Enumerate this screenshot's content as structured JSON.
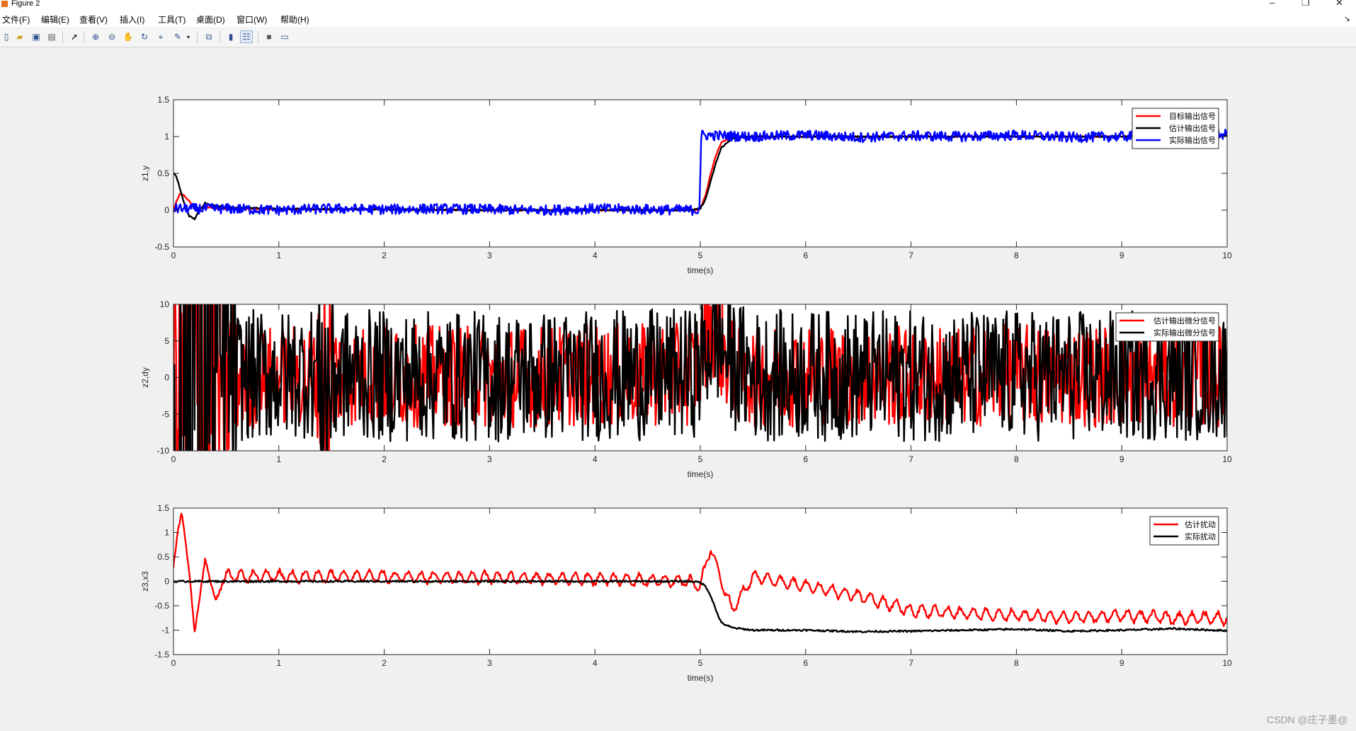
{
  "window": {
    "title": "Figure 2"
  },
  "menu": [
    "文件(F)",
    "编辑(E)",
    "查看(V)",
    "插入(I)",
    "工具(T)",
    "桌面(D)",
    "窗口(W)",
    "帮助(H)"
  ],
  "toolbar": {
    "icons": [
      "new-figure-icon",
      "open-file-icon",
      "save-icon",
      "print-icon",
      "select-arrow-icon",
      "zoom-in-icon",
      "zoom-out-icon",
      "pan-hand-icon",
      "rotate-3d-icon",
      "data-cursor-icon",
      "brush-icon",
      "brush-dropdown-icon",
      "link-plot-icon",
      "colorbar-icon",
      "legend-icon",
      "hide-plot-tools-icon",
      "show-plot-tools-icon"
    ]
  },
  "watermark": "CSDN @庄子墨@",
  "colors": {
    "red": "#ff0000",
    "black": "#000000",
    "blue": "#0000ff"
  },
  "chart_data": [
    {
      "type": "line",
      "ylabel": "z1,y",
      "xlabel": "time(s)",
      "xlim": [
        0,
        10
      ],
      "ylim": [
        -0.5,
        1.5
      ],
      "xticks": [
        "0",
        "1",
        "2",
        "3",
        "4",
        "5",
        "6",
        "7",
        "8",
        "9",
        "10"
      ],
      "yticks": [
        "-0.5",
        "0",
        "0.5",
        "1",
        "1.5"
      ],
      "yvals": [
        -0.5,
        0,
        0.5,
        1,
        1.5
      ],
      "legend_position": "top-right",
      "series": [
        {
          "name": "目标输出信号",
          "color": "#ff0000",
          "x": [
            0,
            0.03,
            0.06,
            0.1,
            0.15,
            0.2,
            0.3,
            0.5,
            1,
            2,
            3,
            4,
            4.9,
            4.95,
            5.0,
            5.05,
            5.1,
            5.15,
            5.2,
            5.3,
            6,
            7,
            8,
            9,
            10
          ],
          "y": [
            0,
            0.12,
            0.22,
            0.2,
            0.12,
            0.02,
            0.04,
            0.02,
            0.01,
            0.01,
            0,
            0,
            0,
            0,
            0.02,
            0.2,
            0.5,
            0.75,
            0.92,
            0.99,
            1,
            1,
            1,
            1,
            1.01
          ]
        },
        {
          "name": "估计输出信号",
          "color": "#000000",
          "x": [
            0,
            0.02,
            0.05,
            0.1,
            0.15,
            0.2,
            0.25,
            0.3,
            0.35,
            0.5,
            1,
            2,
            3,
            4,
            4.9,
            5.0,
            5.05,
            5.1,
            5.15,
            5.2,
            5.3,
            5.5,
            6,
            7,
            8,
            9,
            10
          ],
          "y": [
            0.5,
            0.48,
            0.35,
            0.1,
            -0.08,
            -0.12,
            0.0,
            0.1,
            0.07,
            0.04,
            0.02,
            0.01,
            0,
            0,
            0,
            0.02,
            0.15,
            0.4,
            0.65,
            0.85,
            0.97,
            1,
            1,
            1,
            1,
            1,
            1.01
          ]
        },
        {
          "name": "实际输出信号",
          "color": "#0000ff",
          "x": [
            0,
            0.5,
            1,
            1.5,
            2,
            2.5,
            3,
            3.5,
            4,
            4.5,
            4.99,
            5.01,
            5.5,
            6,
            6.5,
            7,
            7.5,
            8,
            8.5,
            9,
            9.5,
            10
          ],
          "y": [
            0.02,
            0.02,
            0.0,
            0.02,
            0.01,
            0.02,
            0.01,
            0.0,
            0.02,
            0.01,
            0.0,
            1.02,
            1.0,
            1.02,
            0.99,
            1.01,
            1.0,
            1.02,
            0.99,
            1.0,
            1.02,
            1.03
          ]
        }
      ]
    },
    {
      "type": "line",
      "ylabel": "z2,dy",
      "xlabel": "time(s)",
      "xlim": [
        0,
        10
      ],
      "ylim": [
        -10,
        10
      ],
      "xticks": [
        "0",
        "1",
        "2",
        "3",
        "4",
        "5",
        "6",
        "7",
        "8",
        "9",
        "10"
      ],
      "yticks": [
        "-10",
        "-5",
        "0",
        "5",
        "10"
      ],
      "yvals": [
        -10,
        -5,
        0,
        5,
        10
      ],
      "legend_position": "top-right",
      "series": [
        {
          "name": "估计输出微分信号",
          "color": "#ff0000",
          "x": [
            0,
            0.05,
            0.1,
            0.15,
            0.2,
            0.25,
            0.3,
            0.4,
            0.5,
            1,
            1.5,
            2,
            3,
            4,
            4.9,
            5.0,
            5.05,
            5.1,
            5.15,
            5.2,
            5.3,
            5.5,
            6,
            7,
            8,
            9,
            10
          ],
          "y": [
            0,
            1.5,
            -2.5,
            3,
            -3,
            2,
            -1.5,
            1,
            -0.5,
            0.2,
            0.4,
            0.2,
            0.1,
            0.3,
            0.4,
            2,
            5,
            7,
            6.5,
            4,
            1,
            0.2,
            0.3,
            0.2,
            0.3,
            0.2,
            0.3
          ]
        },
        {
          "name": "实际输出微分信号",
          "color": "#000000",
          "x": [
            0,
            0.03,
            0.06,
            0.08,
            0.1,
            0.13,
            0.16,
            0.2,
            0.25,
            0.3,
            0.35,
            0.4,
            0.5,
            0.6,
            1,
            1.4,
            1.45,
            1.5,
            2,
            3,
            4,
            4.9,
            5.0,
            5.05,
            5.1,
            5.15,
            5.2,
            5.3,
            5.5,
            6,
            7,
            8,
            9,
            10
          ],
          "y": [
            0,
            -3,
            -6,
            -8,
            -6,
            -2,
            3,
            6,
            3,
            -1,
            2,
            -2,
            1,
            0.3,
            0.2,
            1,
            -3,
            0.5,
            0.2,
            0.1,
            0.3,
            0.4,
            1.5,
            3.5,
            5,
            5.5,
            4.5,
            2,
            0.3,
            0.3,
            0.2,
            0.3,
            0.2,
            0.4
          ]
        }
      ]
    },
    {
      "type": "line",
      "ylabel": "z3,x3",
      "xlabel": "time(s)",
      "xlim": [
        0,
        10
      ],
      "ylim": [
        -1.5,
        1.5
      ],
      "xticks": [
        "0",
        "1",
        "2",
        "3",
        "4",
        "5",
        "6",
        "7",
        "8",
        "9",
        "10"
      ],
      "yticks": [
        "-1.5",
        "-1",
        "-0.5",
        "0",
        "0.5",
        "1",
        "1.5"
      ],
      "yvals": [
        -1.5,
        -1,
        -0.5,
        0,
        0.5,
        1,
        1.5
      ],
      "legend_position": "top-right",
      "series": [
        {
          "name": "估计扰动",
          "color": "#ff0000",
          "x": [
            0,
            0.04,
            0.08,
            0.15,
            0.2,
            0.3,
            0.4,
            0.5,
            1,
            2,
            3,
            4,
            4.9,
            5.0,
            5.1,
            5.2,
            5.3,
            5.5,
            6,
            6.5,
            7,
            7.5,
            8,
            8.5,
            9,
            9.5,
            10
          ],
          "y": [
            0.3,
            1.0,
            1.42,
            0.2,
            -1.05,
            0.45,
            -0.4,
            0.1,
            0.1,
            0.1,
            0.08,
            0.05,
            0.0,
            -0.1,
            0.7,
            0.0,
            -0.6,
            0.1,
            -0.1,
            -0.3,
            -0.6,
            -0.65,
            -0.7,
            -0.75,
            -0.7,
            -0.75,
            -0.75
          ]
        },
        {
          "name": "实际扰动",
          "color": "#000000",
          "x": [
            0,
            1,
            2,
            3,
            4,
            4.9,
            5.0,
            5.05,
            5.1,
            5.15,
            5.2,
            5.3,
            5.5,
            6,
            6.5,
            7,
            7.5,
            8,
            8.5,
            9,
            9.5,
            10
          ],
          "y": [
            0,
            0,
            0,
            0,
            0,
            0,
            -0.02,
            -0.1,
            -0.3,
            -0.6,
            -0.85,
            -0.95,
            -1.0,
            -1.0,
            -1.03,
            -1.02,
            -1.0,
            -0.98,
            -1.02,
            -1.0,
            -0.97,
            -1.01
          ]
        }
      ]
    }
  ]
}
